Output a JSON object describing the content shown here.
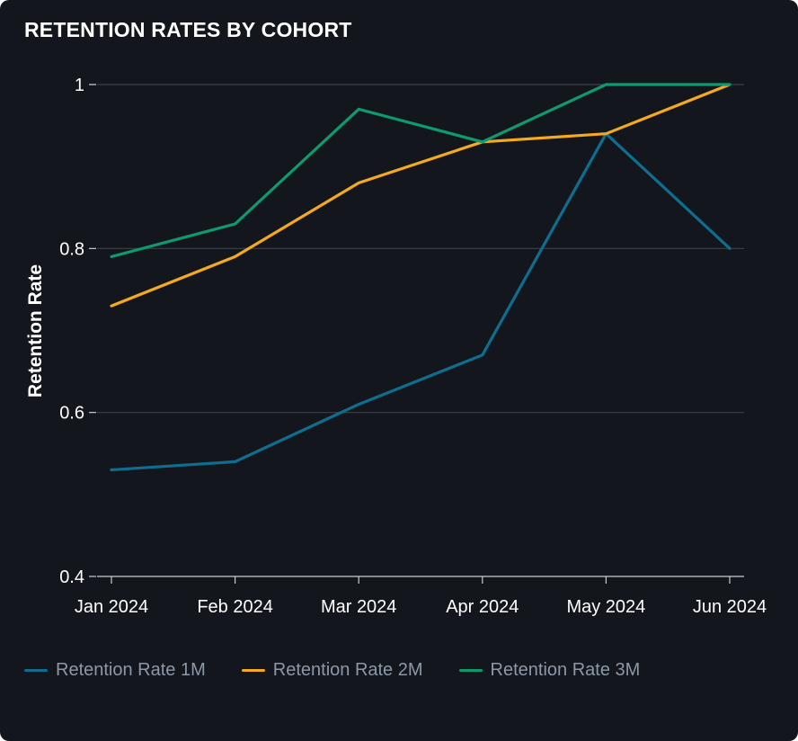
{
  "title": "RETENTION RATES BY COHORT",
  "chart_data": {
    "type": "line",
    "title": "RETENTION RATES BY COHORT",
    "xlabel": "",
    "ylabel": "Retention Rate",
    "categories": [
      "Jan 2024",
      "Feb 2024",
      "Mar 2024",
      "Apr 2024",
      "May 2024",
      "Jun 2024"
    ],
    "yticks": [
      "0.4",
      "0.6",
      "0.8",
      "1"
    ],
    "ylim": [
      0.4,
      1.0
    ],
    "grid": true,
    "legend_position": "bottom",
    "series": [
      {
        "name": "Retention Rate 1M",
        "color": "#0f6d8f",
        "values": [
          0.53,
          0.54,
          0.61,
          0.67,
          0.94,
          0.8
        ]
      },
      {
        "name": "Retention Rate 2M",
        "color": "#f5a91c",
        "values": [
          0.73,
          0.79,
          0.88,
          0.93,
          0.94,
          1.0
        ]
      },
      {
        "name": "Retention Rate 3M",
        "color": "#0e9a6f",
        "values": [
          0.79,
          0.83,
          0.97,
          0.93,
          1.0,
          1.0
        ]
      }
    ]
  }
}
